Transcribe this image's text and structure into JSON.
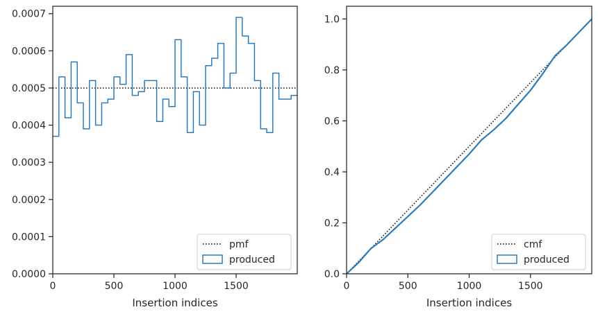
{
  "chart_data": [
    {
      "type": "line",
      "xlabel": "Insertion indices",
      "ylabel": "",
      "xlim": [
        0,
        2000
      ],
      "ylim": [
        0,
        0.00072
      ],
      "xticks": [
        0,
        500,
        1000,
        1500
      ],
      "xtick_labels": [
        "0",
        "500",
        "1000",
        "1500"
      ],
      "yticks": [
        0,
        0.0001,
        0.0002,
        0.0003,
        0.0004,
        0.0005,
        0.0006,
        0.0007
      ],
      "ytick_labels": [
        "0.0000",
        "0.0001",
        "0.0002",
        "0.0003",
        "0.0004",
        "0.0005",
        "0.0006",
        "0.0007"
      ],
      "grid": false,
      "legend_position": "bottom-right",
      "series": [
        {
          "name": "pmf",
          "style": "dotted",
          "color": "#000000",
          "x": [
            0,
            2000
          ],
          "y": [
            0.0005,
            0.0005
          ]
        },
        {
          "name": "produced",
          "style": "step",
          "color": "#2b7bba",
          "bin_edges": [
            0,
            50,
            100,
            150,
            200,
            250,
            300,
            350,
            400,
            450,
            500,
            550,
            600,
            650,
            700,
            750,
            800,
            850,
            900,
            950,
            1000,
            1050,
            1100,
            1150,
            1200,
            1250,
            1300,
            1350,
            1400,
            1450,
            1500,
            1550,
            1600,
            1650,
            1700,
            1750,
            1800,
            1850,
            1900,
            1950,
            2000
          ],
          "values": [
            0.00037,
            0.00053,
            0.00042,
            0.00057,
            0.00046,
            0.00039,
            0.00052,
            0.0004,
            0.00046,
            0.00047,
            0.00053,
            0.00051,
            0.00059,
            0.00048,
            0.00049,
            0.00052,
            0.00052,
            0.00041,
            0.00047,
            0.00045,
            0.00063,
            0.00053,
            0.00038,
            0.00049,
            0.0004,
            0.00056,
            0.00058,
            0.00062,
            0.0005,
            0.00054,
            0.00069,
            0.00064,
            0.00062,
            0.00052,
            0.00039,
            0.00038,
            0.00054,
            0.00047,
            0.00047,
            0.00048
          ]
        }
      ]
    },
    {
      "type": "line",
      "xlabel": "Insertion indices",
      "ylabel": "",
      "xlim": [
        0,
        2000
      ],
      "ylim": [
        0,
        1.05
      ],
      "xticks": [
        0,
        500,
        1000,
        1500
      ],
      "xtick_labels": [
        "0",
        "500",
        "1000",
        "1500"
      ],
      "yticks": [
        0,
        0.2,
        0.4,
        0.6,
        0.8,
        1.0
      ],
      "ytick_labels": [
        "0.0",
        "0.2",
        "0.4",
        "0.6",
        "0.8",
        "1.0"
      ],
      "grid": false,
      "legend_position": "bottom-right",
      "series": [
        {
          "name": "cmf",
          "style": "dotted",
          "color": "#000000",
          "x": [
            0,
            2000
          ],
          "y": [
            0,
            1.0
          ]
        },
        {
          "name": "produced",
          "style": "solid",
          "color": "#2b7bba",
          "x": [
            0,
            100,
            200,
            300,
            400,
            500,
            600,
            700,
            800,
            900,
            1000,
            1100,
            1200,
            1300,
            1400,
            1500,
            1600,
            1700,
            1800,
            1900,
            2000
          ],
          "y": [
            0,
            0.045,
            0.1,
            0.135,
            0.18,
            0.225,
            0.27,
            0.32,
            0.37,
            0.42,
            0.47,
            0.525,
            0.565,
            0.61,
            0.665,
            0.72,
            0.785,
            0.855,
            0.9,
            0.95,
            1.0
          ]
        }
      ]
    }
  ]
}
